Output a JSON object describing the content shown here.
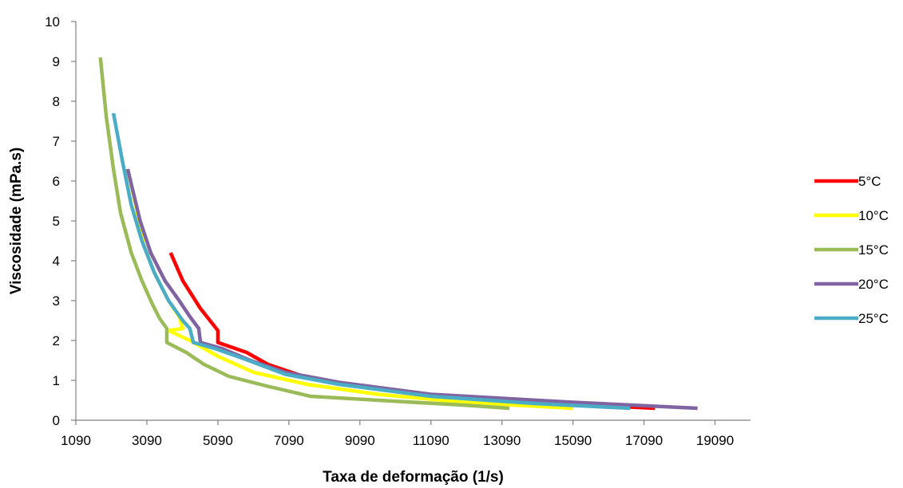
{
  "chart_data": {
    "type": "line",
    "title": "",
    "xlabel": "Taxa de deformação (1/s)",
    "ylabel": "Viscosidade (mPa.s)",
    "xlim": [
      1090,
      20090
    ],
    "ylim": [
      0,
      10
    ],
    "x_ticks": [
      "1090",
      "3090",
      "5090",
      "7090",
      "9090",
      "11090",
      "13090",
      "15090",
      "17090",
      "19090"
    ],
    "y_ticks": [
      "0",
      "1",
      "2",
      "3",
      "4",
      "5",
      "6",
      "7",
      "8",
      "9",
      "10"
    ],
    "grid": false,
    "legend_position": "right",
    "series": [
      {
        "name": "5°C",
        "color": "#ff0000",
        "points": [
          [
            3760,
            4.2
          ],
          [
            4100,
            3.5
          ],
          [
            4600,
            2.8
          ],
          [
            5000,
            2.35
          ],
          [
            5090,
            2.25
          ],
          [
            5090,
            1.95
          ],
          [
            5900,
            1.7
          ],
          [
            6500,
            1.4
          ],
          [
            7500,
            1.1
          ],
          [
            9000,
            0.85
          ],
          [
            11090,
            0.6
          ],
          [
            13090,
            0.5
          ],
          [
            15090,
            0.4
          ],
          [
            17400,
            0.3
          ]
        ]
      },
      {
        "name": "10°C",
        "color": "#ffff00",
        "points": [
          [
            2550,
            6.3
          ],
          [
            2800,
            5.3
          ],
          [
            3000,
            4.4
          ],
          [
            3300,
            3.7
          ],
          [
            3700,
            3.0
          ],
          [
            4000,
            2.6
          ],
          [
            4100,
            2.3
          ],
          [
            3700,
            2.25
          ],
          [
            4300,
            2.0
          ],
          [
            5100,
            1.6
          ],
          [
            6100,
            1.2
          ],
          [
            7600,
            0.9
          ],
          [
            9600,
            0.65
          ],
          [
            12000,
            0.45
          ],
          [
            15090,
            0.3
          ]
        ]
      },
      {
        "name": "15°C",
        "color": "#9bbb59",
        "points": [
          [
            1780,
            9.1
          ],
          [
            1950,
            7.6
          ],
          [
            2150,
            6.3
          ],
          [
            2350,
            5.2
          ],
          [
            2650,
            4.2
          ],
          [
            2950,
            3.5
          ],
          [
            3250,
            2.9
          ],
          [
            3450,
            2.55
          ],
          [
            3650,
            2.3
          ],
          [
            3650,
            1.95
          ],
          [
            4200,
            1.7
          ],
          [
            4700,
            1.4
          ],
          [
            5400,
            1.1
          ],
          [
            6500,
            0.85
          ],
          [
            7700,
            0.6
          ],
          [
            10000,
            0.48
          ],
          [
            12000,
            0.38
          ],
          [
            13300,
            0.3
          ]
        ]
      },
      {
        "name": "20°C",
        "color": "#8064a2",
        "points": [
          [
            2550,
            6.3
          ],
          [
            2900,
            5.0
          ],
          [
            3200,
            4.2
          ],
          [
            3600,
            3.5
          ],
          [
            4000,
            3.0
          ],
          [
            4300,
            2.6
          ],
          [
            4550,
            2.3
          ],
          [
            4600,
            1.95
          ],
          [
            5200,
            1.8
          ],
          [
            6000,
            1.5
          ],
          [
            7000,
            1.2
          ],
          [
            8500,
            0.95
          ],
          [
            11090,
            0.65
          ],
          [
            15090,
            0.45
          ],
          [
            18600,
            0.3
          ]
        ]
      },
      {
        "name": "25°C",
        "color": "#4bacc6",
        "points": [
          [
            2150,
            7.7
          ],
          [
            2400,
            6.5
          ],
          [
            2650,
            5.4
          ],
          [
            2950,
            4.5
          ],
          [
            3300,
            3.7
          ],
          [
            3700,
            3.0
          ],
          [
            4100,
            2.5
          ],
          [
            4300,
            2.3
          ],
          [
            4400,
            1.95
          ],
          [
            5000,
            1.8
          ],
          [
            5800,
            1.55
          ],
          [
            7000,
            1.15
          ],
          [
            8500,
            0.9
          ],
          [
            11090,
            0.6
          ],
          [
            14000,
            0.42
          ],
          [
            16700,
            0.3
          ]
        ]
      }
    ]
  }
}
